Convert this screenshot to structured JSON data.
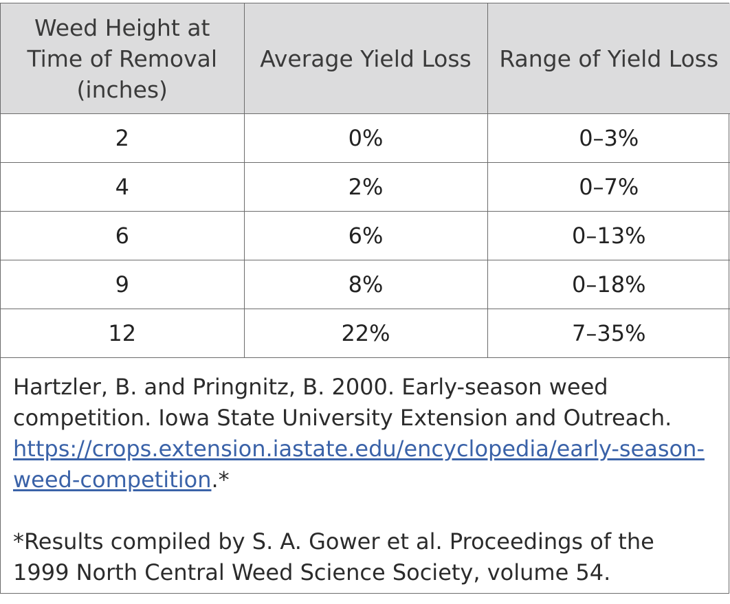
{
  "table": {
    "headers": [
      "Weed Height at Time of Removal (inches)",
      "Average Yield Loss",
      "Range of Yield Loss"
    ],
    "rows": [
      [
        "2",
        "0%",
        "0–3%"
      ],
      [
        "4",
        "2%",
        "0–7%"
      ],
      [
        "6",
        "6%",
        "0–13%"
      ],
      [
        "9",
        "8%",
        "0–18%"
      ],
      [
        "12",
        "22%",
        "7–35%"
      ]
    ]
  },
  "notes": {
    "citation_text": "Hartzler, B. and Pringnitz, B. 2000. Early-season weed competition. Iowa State University Extension and Outreach. ",
    "citation_link": "https://crops.extension.iastate.edu/encyclopedia/early-season-weed-competition",
    "citation_suffix": ".*",
    "footnote": "*Results compiled by S. A. Gower et al. Proceedings of the 1999 North Central Weed Science Society, volume 54."
  }
}
